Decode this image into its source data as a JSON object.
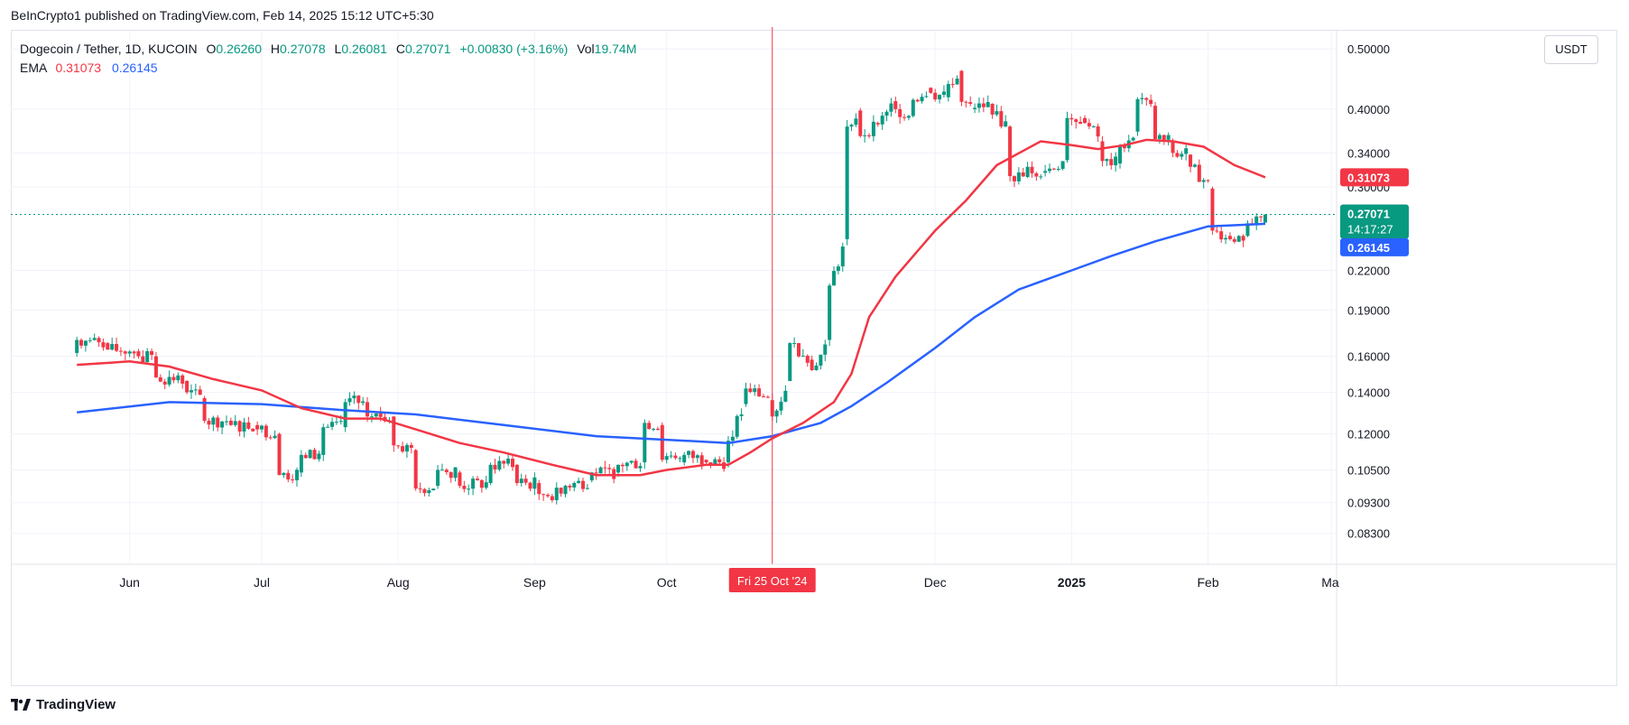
{
  "header": {
    "caption": "BeInCrypto1 published on TradingView.com, Feb 14, 2025 15:12 UTC+5:30"
  },
  "legend": {
    "symbol": "Dogecoin / Tether, 1D, KUCOIN",
    "o_label": "O",
    "o_value": "0.26260",
    "h_label": "H",
    "h_value": "0.27078",
    "l_label": "L",
    "l_value": "0.26081",
    "c_label": "C",
    "c_value": "0.27071",
    "change": "+0.00830 (+3.16%)",
    "vol_label": "Vol",
    "vol_value": "19.74M",
    "ema_label": "EMA",
    "ema_fast_value": "0.31073",
    "ema_slow_value": "0.26145"
  },
  "currency_button": "USDT",
  "footer": {
    "brand": "TradingView"
  },
  "chart_data": {
    "type": "candlestick",
    "y_scale": "log",
    "ylim": [
      0.074,
      0.535
    ],
    "y_ticks": [
      "0.50000",
      "0.40000",
      "0.34000",
      "0.30000",
      "0.22000",
      "0.19000",
      "0.16000",
      "0.14000",
      "0.12000",
      "0.10500",
      "0.09300",
      "0.08300"
    ],
    "x_ticks": [
      "Jun",
      "Jul",
      "Aug",
      "Sep",
      "Oct",
      "Dec",
      "2025",
      "Feb",
      "Ma"
    ],
    "bold_x_tick": "2025",
    "crosshair_label": "Fri 25 Oct '24",
    "last_price": {
      "value": 0.27071,
      "label": "0.27071",
      "countdown": "14:17:27"
    },
    "ema_fast": {
      "value": 0.31073,
      "label": "0.31073",
      "color": "#f23645"
    },
    "ema_slow": {
      "value": 0.26145,
      "label": "0.26145",
      "color": "#2962ff"
    },
    "colors": {
      "up": "#089981",
      "down": "#f23645"
    },
    "ema_fast_path": [
      [
        "2024-05-20",
        0.155
      ],
      [
        "2024-06-01",
        0.157
      ],
      [
        "2024-06-10",
        0.154
      ],
      [
        "2024-06-20",
        0.147
      ],
      [
        "2024-07-01",
        0.141
      ],
      [
        "2024-07-10",
        0.132
      ],
      [
        "2024-07-20",
        0.127
      ],
      [
        "2024-07-28",
        0.127
      ],
      [
        "2024-08-05",
        0.122
      ],
      [
        "2024-08-15",
        0.116
      ],
      [
        "2024-08-25",
        0.112
      ],
      [
        "2024-09-05",
        0.107
      ],
      [
        "2024-09-15",
        0.103
      ],
      [
        "2024-09-25",
        0.103
      ],
      [
        "2024-10-01",
        0.105
      ],
      [
        "2024-10-10",
        0.107
      ],
      [
        "2024-10-15",
        0.107
      ],
      [
        "2024-10-20",
        0.112
      ],
      [
        "2024-10-25",
        0.118
      ],
      [
        "2024-11-01",
        0.125
      ],
      [
        "2024-11-08",
        0.135
      ],
      [
        "2024-11-12",
        0.15
      ],
      [
        "2024-11-16",
        0.185
      ],
      [
        "2024-11-22",
        0.215
      ],
      [
        "2024-12-01",
        0.255
      ],
      [
        "2024-12-08",
        0.285
      ],
      [
        "2024-12-15",
        0.325
      ],
      [
        "2024-12-25",
        0.355
      ],
      [
        "2025-01-01",
        0.35
      ],
      [
        "2025-01-07",
        0.345
      ],
      [
        "2025-01-13",
        0.35
      ],
      [
        "2025-01-18",
        0.357
      ],
      [
        "2025-01-24",
        0.355
      ],
      [
        "2025-01-31",
        0.348
      ],
      [
        "2025-02-07",
        0.325
      ],
      [
        "2025-02-14",
        0.3107
      ]
    ],
    "ema_slow_path": [
      [
        "2024-05-20",
        0.13
      ],
      [
        "2024-06-10",
        0.135
      ],
      [
        "2024-07-01",
        0.134
      ],
      [
        "2024-07-20",
        0.131
      ],
      [
        "2024-08-05",
        0.129
      ],
      [
        "2024-08-25",
        0.124
      ],
      [
        "2024-09-15",
        0.119
      ],
      [
        "2024-10-05",
        0.117
      ],
      [
        "2024-10-15",
        0.116
      ],
      [
        "2024-10-25",
        0.119
      ],
      [
        "2024-11-05",
        0.125
      ],
      [
        "2024-11-12",
        0.133
      ],
      [
        "2024-11-20",
        0.145
      ],
      [
        "2024-12-01",
        0.165
      ],
      [
        "2024-12-10",
        0.185
      ],
      [
        "2024-12-20",
        0.205
      ],
      [
        "2025-01-01",
        0.22
      ],
      [
        "2025-01-10",
        0.232
      ],
      [
        "2025-01-20",
        0.245
      ],
      [
        "2025-02-01",
        0.259
      ],
      [
        "2025-02-14",
        0.2615
      ]
    ],
    "candles_daily": [
      [
        "2024-05-20",
        0.162,
        0.17
      ],
      [
        "2024-05-27",
        0.168,
        0.164
      ],
      [
        "2024-06-03",
        0.163,
        0.16
      ],
      [
        "2024-06-07",
        0.16,
        0.148
      ],
      [
        "2024-06-14",
        0.146,
        0.14
      ],
      [
        "2024-06-18",
        0.137,
        0.126
      ],
      [
        "2024-06-24",
        0.126,
        0.124
      ],
      [
        "2024-06-30",
        0.124,
        0.122
      ],
      [
        "2024-07-05",
        0.12,
        0.103
      ],
      [
        "2024-07-10",
        0.104,
        0.111
      ],
      [
        "2024-07-15",
        0.111,
        0.123
      ],
      [
        "2024-07-20",
        0.123,
        0.135
      ],
      [
        "2024-07-25",
        0.135,
        0.128
      ],
      [
        "2024-07-31",
        0.128,
        0.115
      ],
      [
        "2024-08-05",
        0.113,
        0.098
      ],
      [
        "2024-08-10",
        0.099,
        0.105
      ],
      [
        "2024-08-15",
        0.104,
        0.099
      ],
      [
        "2024-08-22",
        0.1,
        0.107
      ],
      [
        "2024-08-28",
        0.107,
        0.1
      ],
      [
        "2024-09-02",
        0.1,
        0.096
      ],
      [
        "2024-09-08",
        0.096,
        0.099
      ],
      [
        "2024-09-14",
        0.101,
        0.104
      ],
      [
        "2024-09-20",
        0.104,
        0.107
      ],
      [
        "2024-09-26",
        0.108,
        0.125
      ],
      [
        "2024-09-30",
        0.124,
        0.109
      ],
      [
        "2024-10-05",
        0.108,
        0.111
      ],
      [
        "2024-10-10",
        0.109,
        0.108
      ],
      [
        "2024-10-15",
        0.108,
        0.117
      ],
      [
        "2024-10-19",
        0.134,
        0.142
      ],
      [
        "2024-10-25",
        0.136,
        0.128
      ],
      [
        "2024-10-29",
        0.146,
        0.168
      ],
      [
        "2024-11-03",
        0.158,
        0.152
      ],
      [
        "2024-11-07",
        0.17,
        0.208
      ],
      [
        "2024-11-11",
        0.247,
        0.375
      ],
      [
        "2024-11-14",
        0.398,
        0.362
      ],
      [
        "2024-11-18",
        0.38,
        0.378
      ],
      [
        "2024-11-22",
        0.412,
        0.4
      ],
      [
        "2024-11-26",
        0.39,
        0.414
      ],
      [
        "2024-11-30",
        0.433,
        0.425
      ],
      [
        "2024-12-04",
        0.418,
        0.439
      ],
      [
        "2024-12-07",
        0.461,
        0.411
      ],
      [
        "2024-12-10",
        0.4,
        0.402
      ],
      [
        "2024-12-14",
        0.408,
        0.392
      ],
      [
        "2024-12-18",
        0.375,
        0.312
      ],
      [
        "2024-12-22",
        0.311,
        0.323
      ],
      [
        "2024-12-26",
        0.316,
        0.318
      ],
      [
        "2024-12-31",
        0.331,
        0.387
      ],
      [
        "2025-01-04",
        0.387,
        0.38
      ],
      [
        "2025-01-08",
        0.355,
        0.33
      ],
      [
        "2025-01-12",
        0.327,
        0.35
      ],
      [
        "2025-01-16",
        0.368,
        0.415
      ],
      [
        "2025-01-20",
        0.405,
        0.358
      ],
      [
        "2025-01-24",
        0.355,
        0.34
      ],
      [
        "2025-01-28",
        0.338,
        0.323
      ],
      [
        "2025-02-02",
        0.298,
        0.255
      ],
      [
        "2025-02-06",
        0.25,
        0.247
      ],
      [
        "2025-02-10",
        0.25,
        0.262
      ],
      [
        "2025-02-14",
        0.2626,
        0.2707
      ]
    ]
  }
}
